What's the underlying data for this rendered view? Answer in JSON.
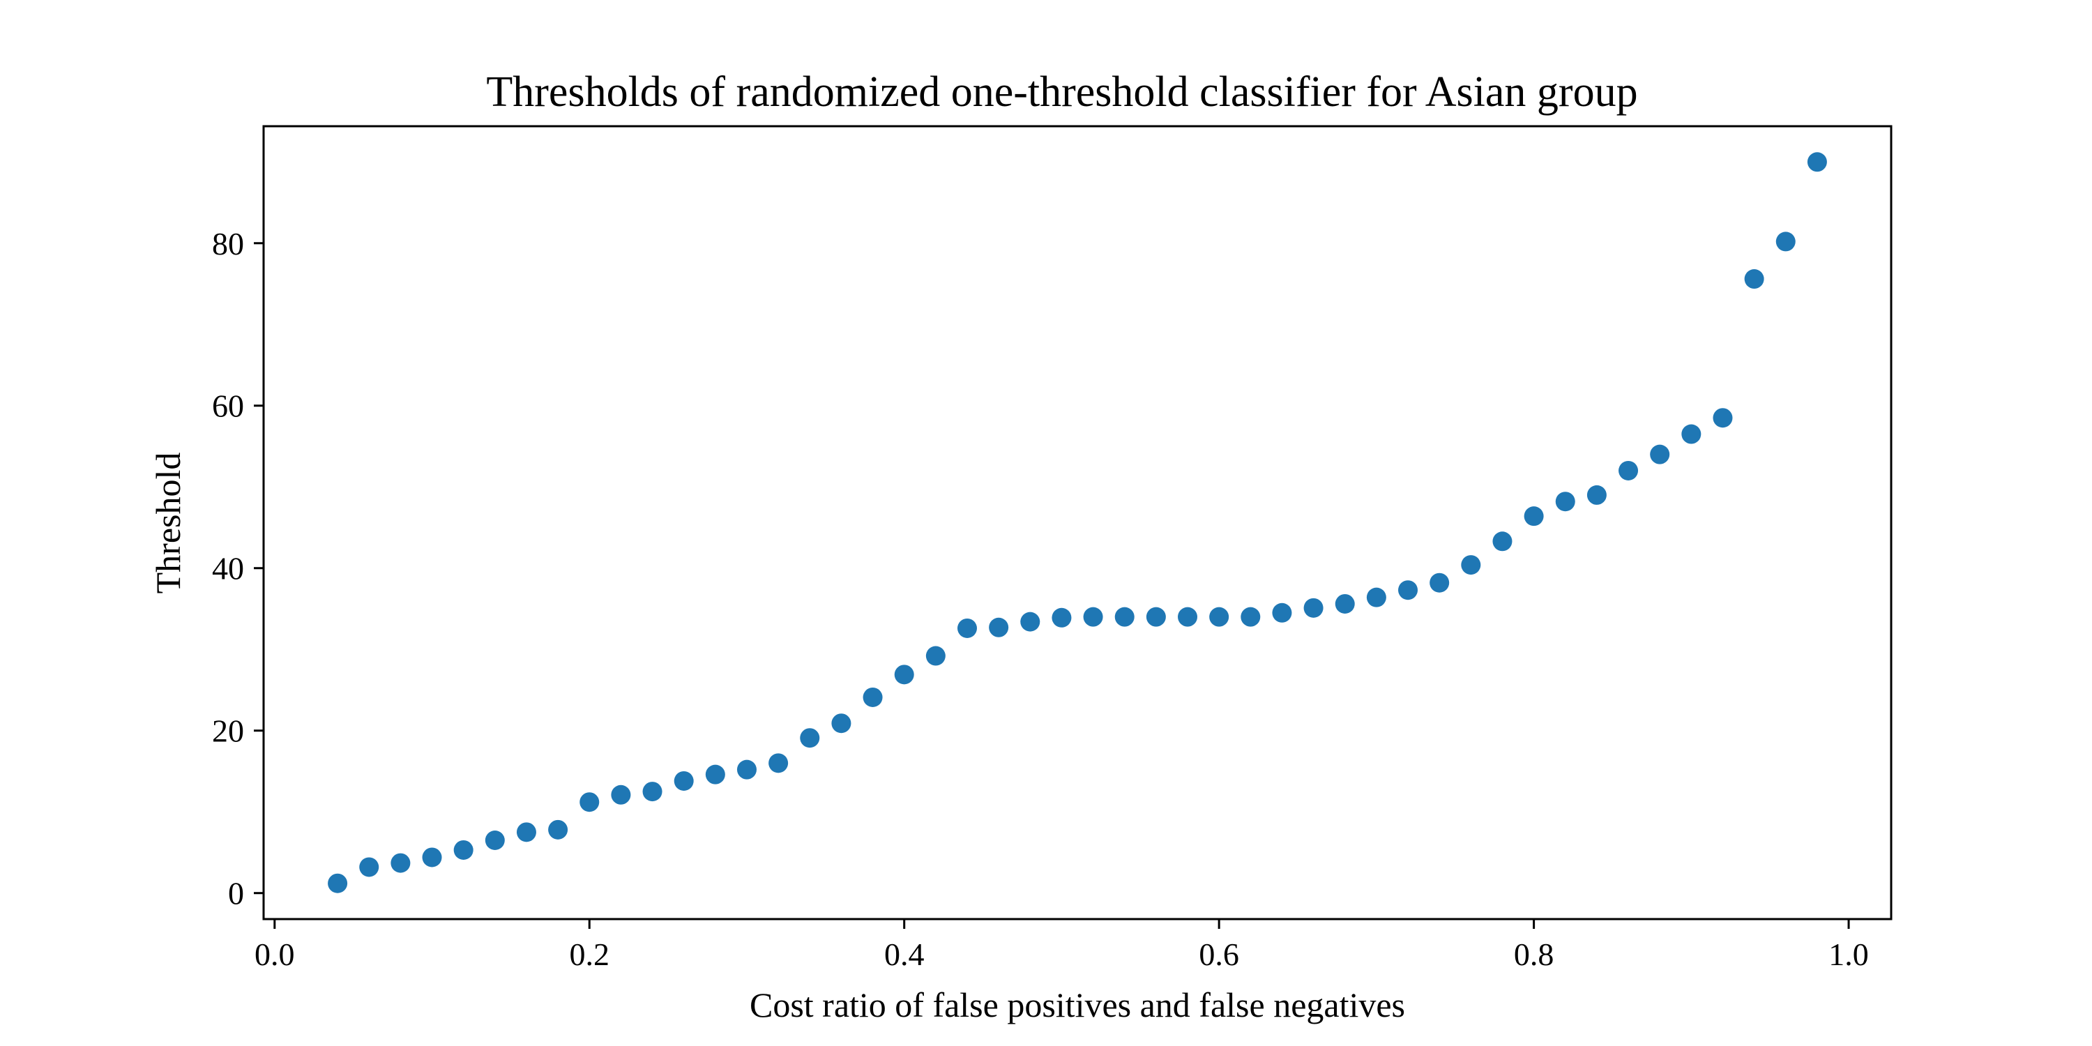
{
  "chart_data": {
    "type": "scatter",
    "title": "Thresholds of randomized one-threshold classifier for Asian group",
    "xlabel": "Cost ratio of false positives and false negatives",
    "ylabel": "Threshold",
    "xlim": [
      -0.007,
      1.027
    ],
    "ylim": [
      -3.2,
      94.4
    ],
    "x_ticks": [
      0.0,
      0.2,
      0.4,
      0.6,
      0.8,
      1.0
    ],
    "x_tick_labels": [
      "0.0",
      "0.2",
      "0.4",
      "0.6",
      "0.8",
      "1.0"
    ],
    "y_ticks": [
      0,
      20,
      40,
      60,
      80
    ],
    "y_tick_labels": [
      "0",
      "20",
      "40",
      "60",
      "80"
    ],
    "grid": false,
    "color": "#1f77b4",
    "x": [
      0.04,
      0.06,
      0.08,
      0.1,
      0.12,
      0.14,
      0.16,
      0.18,
      0.2,
      0.22,
      0.24,
      0.26,
      0.28,
      0.3,
      0.32,
      0.34,
      0.36,
      0.38,
      0.4,
      0.42,
      0.44,
      0.46,
      0.48,
      0.5,
      0.52,
      0.54,
      0.56,
      0.58,
      0.6,
      0.62,
      0.64,
      0.66,
      0.68,
      0.7,
      0.72,
      0.74,
      0.76,
      0.78,
      0.8,
      0.82,
      0.84,
      0.86,
      0.88,
      0.9,
      0.92,
      0.94,
      0.96,
      0.98
    ],
    "y": [
      1.2,
      3.2,
      3.7,
      4.4,
      5.3,
      6.5,
      7.5,
      7.8,
      11.2,
      12.1,
      12.5,
      13.8,
      14.6,
      15.2,
      16.0,
      19.1,
      20.9,
      24.1,
      26.9,
      29.2,
      32.6,
      32.7,
      33.4,
      33.9,
      34.0,
      34.0,
      34.0,
      34.0,
      34.0,
      34.0,
      34.5,
      35.1,
      35.6,
      36.4,
      37.3,
      38.2,
      40.4,
      43.3,
      46.4,
      48.2,
      49.0,
      52.0,
      54.0,
      56.5,
      58.5,
      75.6,
      80.2,
      90.0
    ]
  }
}
